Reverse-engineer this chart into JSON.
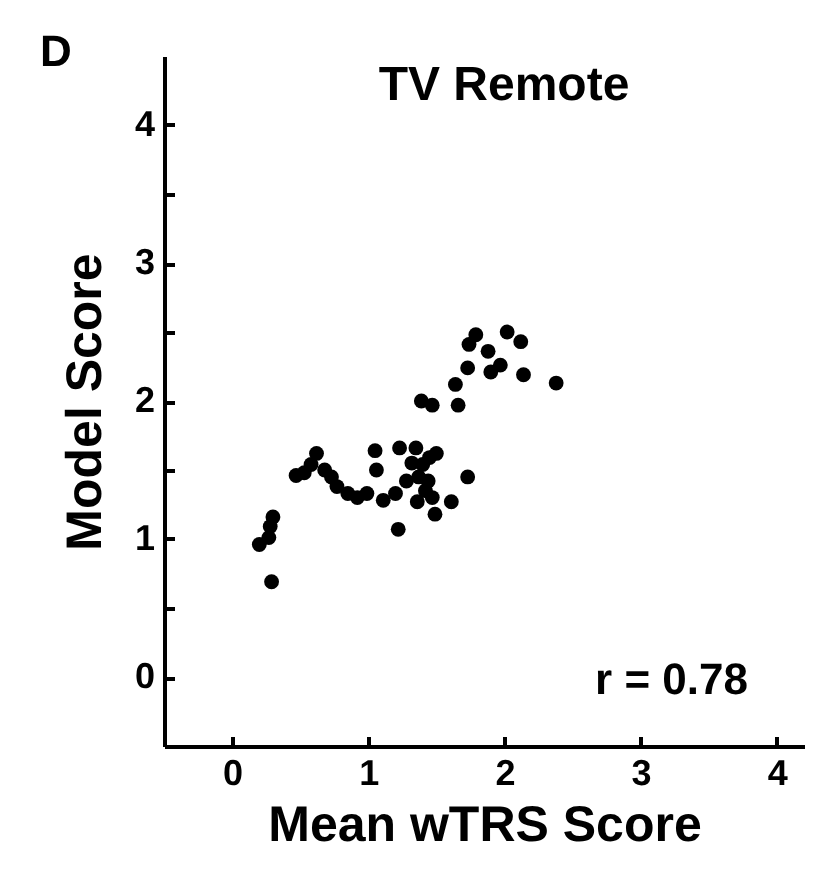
{
  "chart_data": {
    "type": "scatter",
    "title": "TV Remote",
    "xlabel": "Mean wTRS Score",
    "ylabel": "Model Score",
    "annotations": [
      "D",
      "r = 0.78"
    ],
    "x": [
      0.29,
      0.2,
      0.27,
      0.28,
      0.3,
      0.47,
      0.53,
      0.62,
      0.58,
      0.68,
      0.73,
      0.77,
      0.85,
      0.92,
      0.99,
      1.05,
      1.06,
      1.11,
      1.2,
      1.22,
      1.23,
      1.35,
      1.37,
      1.4,
      1.42,
      1.45,
      1.47,
      1.49,
      1.5,
      1.61,
      1.73,
      1.39,
      1.47,
      1.64,
      1.66,
      1.73,
      1.74,
      1.79,
      1.88,
      1.9,
      2.02,
      2.12,
      1.97,
      2.14,
      2.38,
      1.32,
      1.28,
      1.36,
      1.44
    ],
    "values": [
      0.69,
      0.96,
      1.01,
      1.09,
      1.16,
      1.46,
      1.48,
      1.62,
      1.54,
      1.5,
      1.45,
      1.38,
      1.33,
      1.3,
      1.33,
      1.64,
      1.5,
      1.28,
      1.33,
      1.07,
      1.66,
      1.66,
      1.45,
      1.54,
      1.35,
      1.59,
      1.3,
      1.18,
      1.62,
      1.27,
      1.45,
      2.0,
      1.97,
      2.12,
      1.97,
      2.24,
      2.41,
      2.48,
      2.36,
      2.21,
      2.5,
      2.43,
      2.26,
      2.19,
      2.13,
      1.55,
      1.42,
      1.27,
      1.42
    ],
    "color": "#000000",
    "marker": "circle",
    "grid": false,
    "xlim": [
      -0.5,
      4.2
    ],
    "ylim": [
      -0.5,
      4.5
    ],
    "xticks": [
      0,
      1,
      2,
      3,
      4
    ],
    "yticks": [
      0,
      {
        "value": 0.5,
        "label": null
      },
      1,
      {
        "value": 1.5,
        "label": null
      },
      2,
      {
        "value": 2.5,
        "label": null
      },
      3,
      {
        "value": 3.5,
        "label": null
      },
      4
    ]
  }
}
